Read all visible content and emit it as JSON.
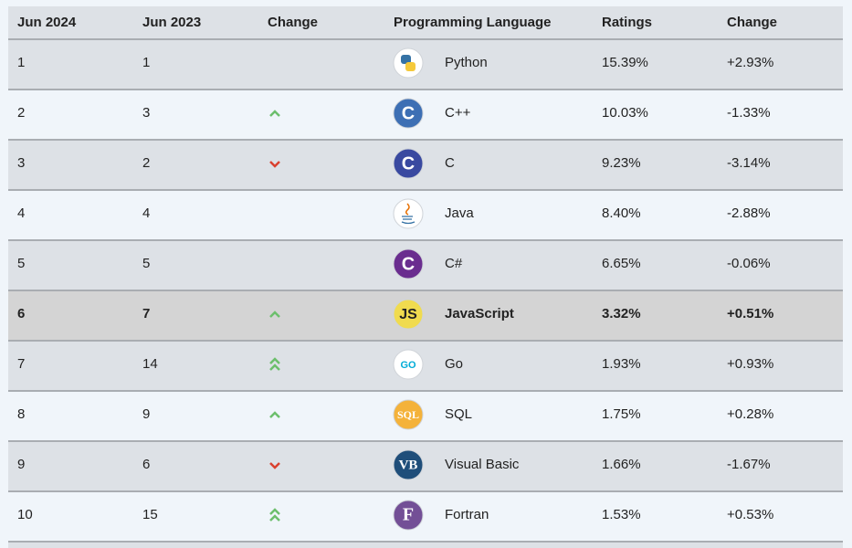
{
  "table": {
    "headers": [
      "Jun 2024",
      "Jun 2023",
      "Change",
      "Programming Language",
      "Ratings",
      "Change"
    ],
    "rows": [
      {
        "jun_2024": "1",
        "jun_2023": "1",
        "language": "Python",
        "ratings": "15.39%",
        "change": "+2.93%",
        "logo": null
      },
      {
        "jun_2024": "2",
        "jun_2023": "3",
        "language": "C++",
        "ratings": "10.03%",
        "change": "-1.33%",
        "logo": "C"
      },
      {
        "jun_2024": "3",
        "jun_2023": "2",
        "language": "C",
        "ratings": "9.23%",
        "change": "-3.14%",
        "logo": "C"
      },
      {
        "jun_2024": "4",
        "jun_2023": "4",
        "language": "Java",
        "ratings": "8.40%",
        "change": "-2.88%",
        "logo": null
      },
      {
        "jun_2024": "5",
        "jun_2023": "5",
        "language": "C#",
        "ratings": "6.65%",
        "change": "-0.06%",
        "logo": "C"
      },
      {
        "jun_2024": "6",
        "jun_2023": "7",
        "language": "JavaScript",
        "ratings": "3.32%",
        "change": "+0.51%",
        "logo": "JS"
      },
      {
        "jun_2024": "7",
        "jun_2023": "14",
        "language": "Go",
        "ratings": "1.93%",
        "change": "+0.93%",
        "logo": "GO"
      },
      {
        "jun_2024": "8",
        "jun_2023": "9",
        "language": "SQL",
        "ratings": "1.75%",
        "change": "+0.28%",
        "logo": "SQL"
      },
      {
        "jun_2024": "9",
        "jun_2023": "6",
        "language": "Visual Basic",
        "ratings": "1.66%",
        "change": "-1.67%",
        "logo": "VB"
      },
      {
        "jun_2024": "10",
        "jun_2023": "15",
        "language": "Fortran",
        "ratings": "1.53%",
        "change": "+0.53%",
        "logo": "F"
      }
    ]
  }
}
